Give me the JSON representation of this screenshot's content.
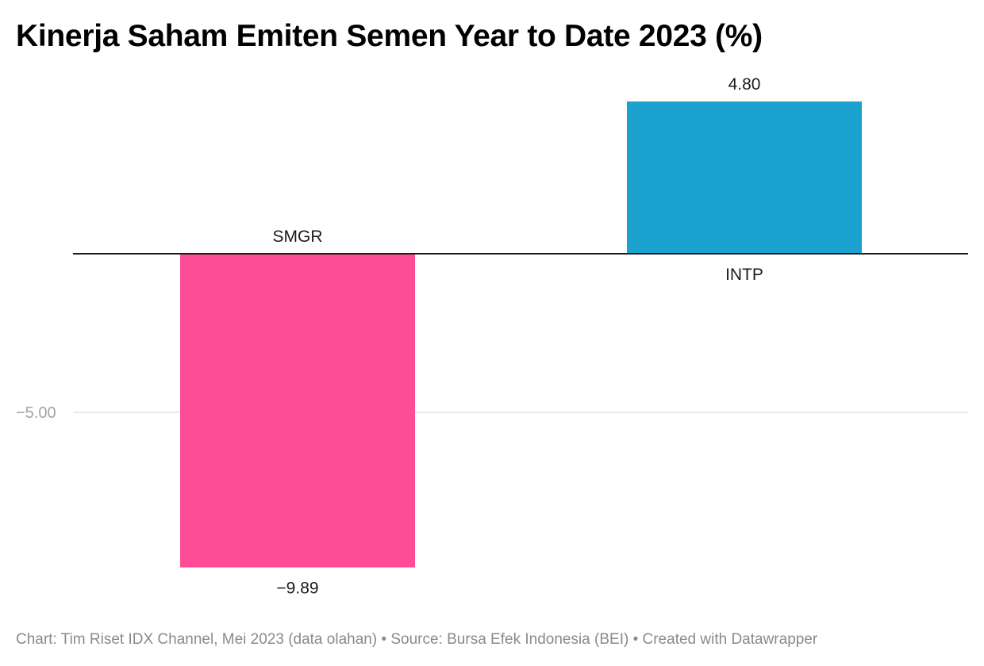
{
  "chart_data": {
    "type": "bar",
    "title": "Kinerja Saham Emiten Semen Year to Date 2023 (%)",
    "categories": [
      "SMGR",
      "INTP"
    ],
    "values": [
      -9.89,
      4.8
    ],
    "value_labels": [
      "−9.89",
      "4.80"
    ],
    "bar_colors": [
      "#ff4c96",
      "#1ba1ce"
    ],
    "ytick_values": [
      -5
    ],
    "ytick_labels": [
      "−5.00"
    ],
    "zero_line": true,
    "grid": true,
    "legend": false
  },
  "footer": {
    "text": "Chart: Tim Riset IDX Channel, Mei 2023 (data olahan) • Source: Bursa Efek Indonesia (BEI) • Created with Datawrapper"
  }
}
